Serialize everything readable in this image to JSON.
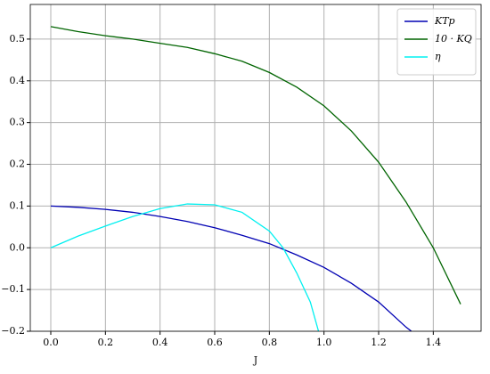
{
  "chart_data": {
    "type": "line",
    "x_label": "J",
    "xlim": [
      -0.075,
      1.575
    ],
    "ylim": [
      -0.2,
      0.583
    ],
    "xticks": [
      {
        "value": 0,
        "label": "0.0"
      },
      0.2,
      0.4,
      0.6,
      0.8,
      {
        "value": 1,
        "label": "1.0"
      },
      1.2,
      1.4
    ],
    "yticks": [
      {
        "value": -0.2,
        "label": "−0.2"
      },
      {
        "value": -0.1,
        "label": "−0.1"
      },
      {
        "value": 0,
        "label": "0.0"
      },
      0.1,
      0.2,
      0.3,
      0.4,
      0.5
    ],
    "grid": true,
    "legend": "upper right",
    "series": [
      {
        "name": "KTp",
        "color": "#0000b3",
        "x": [
          0,
          0.1,
          0.2,
          0.3,
          0.4,
          0.5,
          0.6,
          0.7,
          0.8,
          0.9,
          1.0,
          1.1,
          1.2,
          1.3,
          1.32
        ],
        "values": [
          0.1,
          0.097,
          0.092,
          0.085,
          0.075,
          0.063,
          0.048,
          0.03,
          0.01,
          -0.017,
          -0.047,
          -0.085,
          -0.13,
          -0.19,
          -0.2
        ]
      },
      {
        "name": "10 · KQ",
        "color": "#006400",
        "x": [
          0,
          0.1,
          0.2,
          0.3,
          0.4,
          0.5,
          0.6,
          0.7,
          0.8,
          0.9,
          1.0,
          1.1,
          1.2,
          1.3,
          1.4,
          1.5
        ],
        "values": [
          0.53,
          0.518,
          0.508,
          0.5,
          0.49,
          0.48,
          0.465,
          0.447,
          0.42,
          0.385,
          0.34,
          0.28,
          0.205,
          0.11,
          0.0,
          -0.135
        ]
      },
      {
        "name": "η",
        "color": "#00f0f0",
        "x": [
          0,
          0.1,
          0.2,
          0.3,
          0.4,
          0.5,
          0.6,
          0.7,
          0.8,
          0.85,
          0.9,
          0.95,
          0.98
        ],
        "values": [
          0,
          0.028,
          0.052,
          0.075,
          0.094,
          0.105,
          0.103,
          0.085,
          0.04,
          0.0,
          -0.06,
          -0.13,
          -0.2
        ]
      }
    ]
  }
}
